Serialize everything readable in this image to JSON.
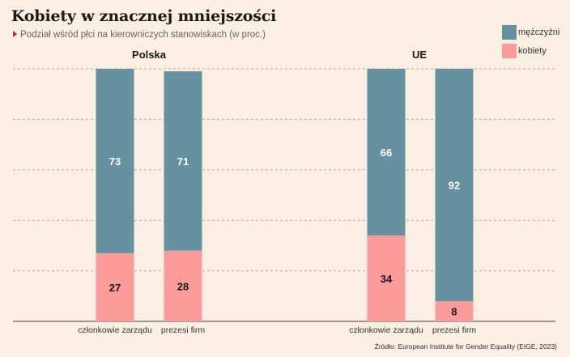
{
  "title": "Kobiety w znacznej mniejszości",
  "subtitle": "Podział wśród płci na kierowniczych stanowiskach (w proc.)",
  "source": "Źródło: European Institute for Gender Equality (EIGE, 2023)",
  "colors": {
    "men": "#6591a1",
    "women": "#fb9b9a",
    "background": "#fbeee2"
  },
  "legend": [
    {
      "label": "mężczyźni",
      "color": "#6591a1"
    },
    {
      "label": "kobiety",
      "color": "#fb9b9a"
    }
  ],
  "chart_data": {
    "type": "bar",
    "stacked": true,
    "ylim": [
      0,
      100
    ],
    "grid": true,
    "legend_position": "top-right",
    "groups": [
      {
        "name": "Polska",
        "categories": [
          "członkowie zarządu",
          "prezesi firm"
        ],
        "series": [
          {
            "name": "kobiety",
            "values": [
              27,
              28
            ]
          },
          {
            "name": "mężczyźni",
            "values": [
              73,
              71
            ]
          }
        ]
      },
      {
        "name": "UE",
        "categories": [
          "członkowie zarządu",
          "prezesi firm"
        ],
        "series": [
          {
            "name": "kobiety",
            "values": [
              34,
              8
            ]
          },
          {
            "name": "mężczyźni",
            "values": [
              66,
              92
            ]
          }
        ]
      }
    ]
  }
}
